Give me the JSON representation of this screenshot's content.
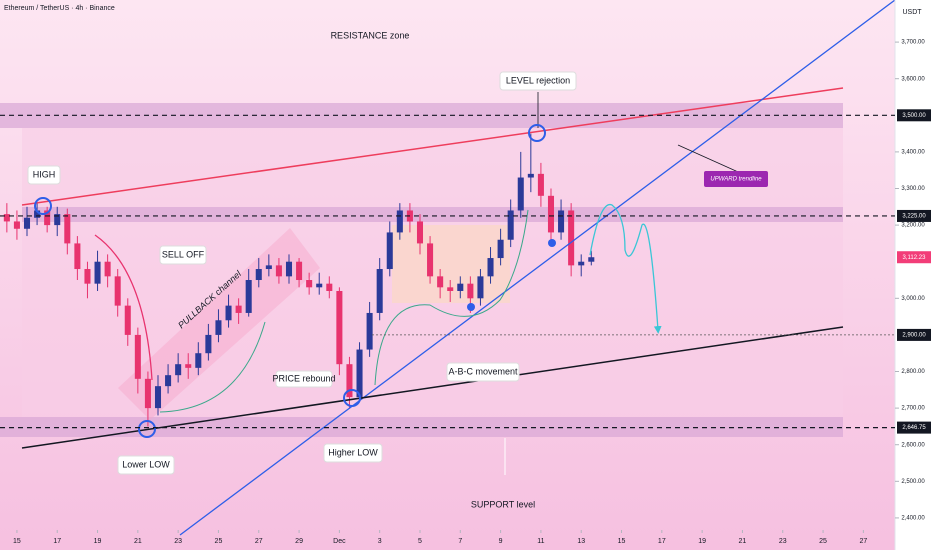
{
  "chart_data": {
    "type": "candlestick",
    "title": "Ethereum / TetherUS · 4h · Binance",
    "currency": "USDT",
    "annotations": {
      "resistance": "RESISTANCE zone",
      "rejection": "LEVEL rejection",
      "high": "HIGH",
      "selloff": "SELL OFF",
      "pullback": "PULLBACK channel",
      "trendline": "UPWARD trendline",
      "rebound": "PRICE rebound",
      "abc": "A-B-C movement",
      "lowerlow": "Lower LOW",
      "higherlow": "Higher LOW",
      "support": "SUPPORT level"
    },
    "up_color": "#2b3a99",
    "down_color": "#e8336e",
    "x": [
      -0.5,
      0,
      0.5,
      1,
      1.5,
      2,
      2.5,
      3,
      3.5,
      4,
      4.5,
      5,
      5.5,
      6,
      6.5,
      7,
      7.5,
      8,
      8.5,
      9,
      9.5,
      10,
      10.5,
      11,
      11.5,
      12,
      12.5,
      13,
      13.5,
      14,
      14.5,
      15,
      15.5,
      16,
      16.5,
      17,
      17.5,
      18,
      18.5,
      19,
      19.5,
      20,
      20.5,
      21,
      21.5,
      22,
      22.5,
      23,
      23.5,
      24,
      24.5,
      25,
      25.5,
      26,
      26.5,
      27,
      27.5,
      28,
      28.5
    ],
    "open": [
      3230,
      3210,
      3190,
      3220,
      3240,
      3200,
      3230,
      3150,
      3080,
      3040,
      3100,
      3060,
      2980,
      2900,
      2780,
      2700,
      2760,
      2790,
      2820,
      2810,
      2850,
      2900,
      2940,
      2980,
      2960,
      3050,
      3080,
      3090,
      3060,
      3100,
      3050,
      3030,
      3040,
      3020,
      2820,
      2730,
      2860,
      2960,
      3080,
      3180,
      3240,
      3210,
      3150,
      3060,
      3030,
      3020,
      3040,
      3000,
      3060,
      3110,
      3160,
      3240,
      3330,
      3340,
      3280,
      3180,
      3240,
      3090,
      3100
    ],
    "high": [
      3260,
      3240,
      3250,
      3260,
      3250,
      3250,
      3245,
      3170,
      3100,
      3130,
      3120,
      3080,
      3000,
      2920,
      2800,
      2790,
      2820,
      2850,
      2850,
      2880,
      2930,
      2970,
      3010,
      3000,
      3080,
      3110,
      3120,
      3110,
      3120,
      3110,
      3070,
      3070,
      3060,
      3030,
      2840,
      2880,
      2990,
      3110,
      3210,
      3260,
      3260,
      3230,
      3170,
      3080,
      3050,
      3060,
      3060,
      3080,
      3140,
      3190,
      3270,
      3400,
      3450,
      3370,
      3300,
      3270,
      3260,
      3120,
      3130
    ],
    "low": [
      3180,
      3160,
      3170,
      3200,
      3180,
      3170,
      3120,
      3050,
      3000,
      3020,
      3030,
      2950,
      2870,
      2740,
      2650,
      2680,
      2740,
      2770,
      2780,
      2790,
      2830,
      2880,
      2920,
      2930,
      2950,
      3030,
      3060,
      3040,
      3040,
      3030,
      3010,
      3010,
      3000,
      2790,
      2700,
      2720,
      2840,
      2940,
      3060,
      3160,
      3180,
      3120,
      3040,
      3000,
      2990,
      3000,
      2960,
      2980,
      3040,
      3090,
      3140,
      3220,
      3290,
      3250,
      3150,
      3160,
      3060,
      3060,
      3090
    ],
    "close": [
      3210,
      3190,
      3220,
      3240,
      3200,
      3230,
      3150,
      3080,
      3040,
      3100,
      3060,
      2980,
      2900,
      2780,
      2700,
      2760,
      2790,
      2820,
      2810,
      2850,
      2900,
      2940,
      2980,
      2960,
      3050,
      3080,
      3090,
      3060,
      3100,
      3050,
      3030,
      3040,
      3020,
      2820,
      2730,
      2860,
      2960,
      3080,
      3180,
      3240,
      3210,
      3150,
      3060,
      3030,
      3020,
      3040,
      3000,
      3060,
      3110,
      3160,
      3240,
      3330,
      3340,
      3280,
      3180,
      3240,
      3090,
      3100,
      3112.23
    ],
    "xlim": [
      -0.84,
      43.57
    ],
    "xticks": [
      {
        "value": 0,
        "label": "15"
      },
      {
        "value": 2,
        "label": "17"
      },
      {
        "value": 4,
        "label": "19"
      },
      {
        "value": 6,
        "label": "21"
      },
      {
        "value": 8,
        "label": "23"
      },
      {
        "value": 10,
        "label": "25"
      },
      {
        "value": 12,
        "label": "27"
      },
      {
        "value": 14,
        "label": "29"
      },
      {
        "value": 16,
        "label": "Dec"
      },
      {
        "value": 18,
        "label": "3"
      },
      {
        "value": 20,
        "label": "5"
      },
      {
        "value": 22,
        "label": "7"
      },
      {
        "value": 24,
        "label": "9"
      },
      {
        "value": 26,
        "label": "11"
      },
      {
        "value": 28,
        "label": "13"
      },
      {
        "value": 30,
        "label": "15"
      },
      {
        "value": 32,
        "label": "17"
      },
      {
        "value": 34,
        "label": "19"
      },
      {
        "value": 36,
        "label": "21"
      },
      {
        "value": 38,
        "label": "23"
      },
      {
        "value": 40,
        "label": "25"
      },
      {
        "value": 42,
        "label": "27"
      }
    ],
    "ylim": [
      2367,
      3815
    ],
    "yticks": [
      {
        "value": 3700,
        "label": "3,700.00"
      },
      {
        "value": 3600,
        "label": "3,600.00"
      },
      {
        "value": 3400,
        "label": "3,400.00"
      },
      {
        "value": 3300,
        "label": "3,300.00"
      },
      {
        "value": 3200,
        "label": "3,200.00"
      },
      {
        "value": 3000,
        "label": "3,000.00"
      },
      {
        "value": 2800,
        "label": "2,800.00"
      },
      {
        "value": 2700,
        "label": "2,700.00"
      },
      {
        "value": 2600,
        "label": "2,600.00"
      },
      {
        "value": 2500,
        "label": "2,500.00"
      },
      {
        "value": 2400,
        "label": "2,400.00"
      }
    ],
    "levels": [
      {
        "value": 3500,
        "label": "3,500.00",
        "color": "#131722",
        "line": "dashed"
      },
      {
        "value": 3225,
        "label": "3,225.00",
        "color": "#131722",
        "line": "dashed"
      },
      {
        "value": 3112.23,
        "label": "3,112.23",
        "color": "#f23d78",
        "line": "none"
      },
      {
        "value": 2900,
        "label": "2,900.00",
        "color": "#131722",
        "line": "dotted"
      },
      {
        "value": 2646.75,
        "label": "2,646.75",
        "color": "#131722",
        "line": "dashed"
      }
    ]
  }
}
